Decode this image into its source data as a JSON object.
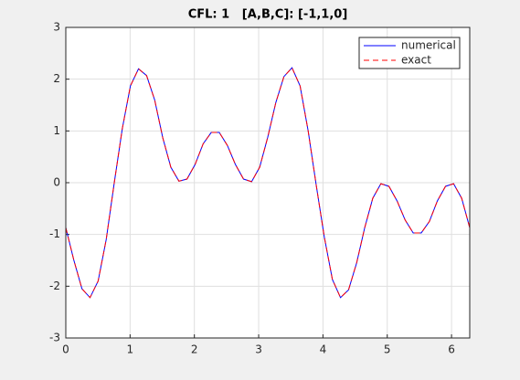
{
  "chart_data": {
    "type": "line",
    "title": "CFL: 1   [A,B,C]: [-1,1,0]",
    "x": [
      0,
      0.1257,
      0.2513,
      0.377,
      0.5027,
      0.6283,
      0.754,
      0.8796,
      1.0053,
      1.131,
      1.2566,
      1.3823,
      1.508,
      1.6336,
      1.7593,
      1.885,
      2.0106,
      2.1363,
      2.2619,
      2.3876,
      2.5133,
      2.6389,
      2.7646,
      2.8903,
      3.0159,
      3.1416,
      3.2673,
      3.3929,
      3.5186,
      3.6442,
      3.7699,
      3.8956,
      4.0212,
      4.1469,
      4.2726,
      4.3982,
      4.5239,
      4.6496,
      4.7752,
      4.9009,
      5.0265,
      5.1522,
      5.2779,
      5.4035,
      5.5292,
      5.6549,
      5.7805,
      5.9062,
      6.0319,
      6.1575,
      6.2832
    ],
    "series": [
      {
        "name": "numerical",
        "color": "#0000ff",
        "dash": "solid",
        "values": [
          -0.87,
          -1.5,
          -2.05,
          -2.22,
          -1.9,
          -1.1,
          0,
          1.05,
          1.87,
          2.2,
          2.07,
          1.6,
          0.87,
          0.3,
          0.03,
          0.07,
          0.35,
          0.75,
          0.97,
          0.97,
          0.72,
          0.35,
          0.07,
          0.02,
          0.3,
          0.88,
          1.55,
          2.05,
          2.22,
          1.87,
          1.0,
          -0.05,
          -1.05,
          -1.87,
          -2.22,
          -2.07,
          -1.55,
          -0.87,
          -0.3,
          -0.02,
          -0.07,
          -0.35,
          -0.72,
          -0.97,
          -0.97,
          -0.75,
          -0.35,
          -0.07,
          -0.02,
          -0.3,
          -0.87
        ]
      },
      {
        "name": "exact",
        "color": "#ff0000",
        "dash": "dashed",
        "values": [
          -0.87,
          -1.5,
          -2.05,
          -2.22,
          -1.9,
          -1.1,
          0,
          1.05,
          1.87,
          2.2,
          2.07,
          1.6,
          0.87,
          0.3,
          0.03,
          0.07,
          0.35,
          0.75,
          0.97,
          0.97,
          0.72,
          0.35,
          0.07,
          0.02,
          0.3,
          0.88,
          1.55,
          2.05,
          2.22,
          1.87,
          1.0,
          -0.05,
          -1.05,
          -1.87,
          -2.22,
          -2.07,
          -1.55,
          -0.87,
          -0.3,
          -0.02,
          -0.07,
          -0.35,
          -0.72,
          -0.97,
          -0.97,
          -0.75,
          -0.35,
          -0.07,
          -0.02,
          -0.3,
          -0.87
        ]
      }
    ],
    "xlim": [
      0,
      6.2832
    ],
    "ylim": [
      -3,
      3
    ],
    "xticks": [
      0,
      1,
      2,
      3,
      4,
      5,
      6
    ],
    "yticks": [
      -3,
      -2,
      -1,
      0,
      1,
      2,
      3
    ],
    "grid": true,
    "legend": "northeast"
  }
}
